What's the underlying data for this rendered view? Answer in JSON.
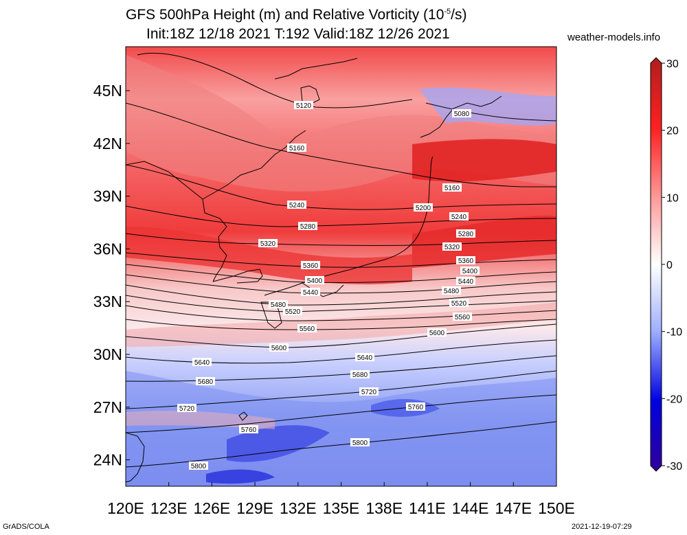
{
  "title": {
    "line1": "GFS 500hPa Height (m) and Relative Vorticity (10",
    "line1_sup": "-5",
    "line1_end": "/s)",
    "line2": "Init:18Z 12/18 2021 T:192 Valid:18Z 12/26 2021"
  },
  "source": "weather-models.info",
  "footer": {
    "left": "GrADS/COLA",
    "right": "2021-12-19-07:29"
  },
  "map": {
    "lon_range": [
      120,
      150
    ],
    "lat_range": [
      22.5,
      47.5
    ],
    "lon_ticks": [
      "120E",
      "123E",
      "126E",
      "129E",
      "132E",
      "135E",
      "138E",
      "141E",
      "144E",
      "147E",
      "150E"
    ],
    "lat_ticks": [
      "24N",
      "27N",
      "30N",
      "33N",
      "36N",
      "39N",
      "42N",
      "45N"
    ],
    "contour_labels": [
      "5080",
      "5120",
      "5160",
      "5160",
      "5200",
      "5240",
      "5240",
      "5280",
      "5280",
      "5320",
      "5320",
      "5360",
      "5360",
      "5400",
      "5400",
      "5440",
      "5440",
      "5480",
      "5480",
      "5520",
      "5520",
      "5560",
      "5560",
      "5600",
      "5600",
      "5640",
      "5640",
      "5680",
      "5680",
      "5720",
      "5720",
      "5760",
      "5760",
      "5800",
      "5800"
    ]
  },
  "colorbar": {
    "labels": [
      "30",
      "20",
      "10",
      "0",
      "-10",
      "-20",
      "-30"
    ],
    "colors": {
      "max": "#b01e1e",
      "high": "#ff2020",
      "mid_high": "#ff9a9a",
      "zero": "#ffffff",
      "mid_low": "#a0b0ff",
      "low": "#0000e0",
      "min": "#30009a"
    }
  }
}
